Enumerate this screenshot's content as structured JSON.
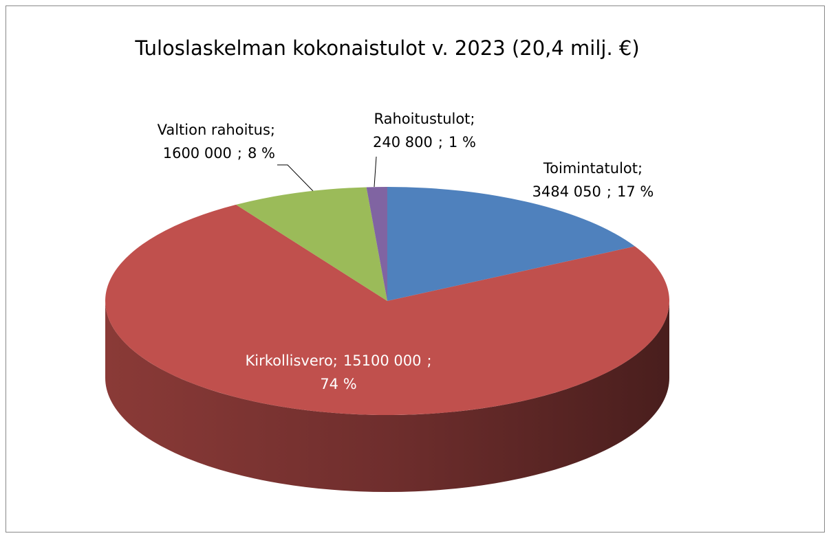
{
  "chart_data": {
    "type": "pie",
    "title": "Tuloslaskelman kokonaistulot v. 2023 (20,4 milj. €)",
    "categories": [
      "Toimintatulot",
      "Kirkollisvero",
      "Valtion rahoitus",
      "Rahoitustulot"
    ],
    "values": [
      3484050,
      15100000,
      1600000,
      240800
    ],
    "value_labels": [
      "3484 050",
      "15100 000",
      "1600 000",
      "240 800"
    ],
    "percents": [
      17,
      74,
      8,
      1
    ],
    "percent_labels": [
      "17 %",
      "74 %",
      "8 %",
      "1 %"
    ],
    "separator": ";",
    "colors": [
      "#4f81bd",
      "#c0504d",
      "#9bbb59",
      "#8064a2"
    ]
  }
}
